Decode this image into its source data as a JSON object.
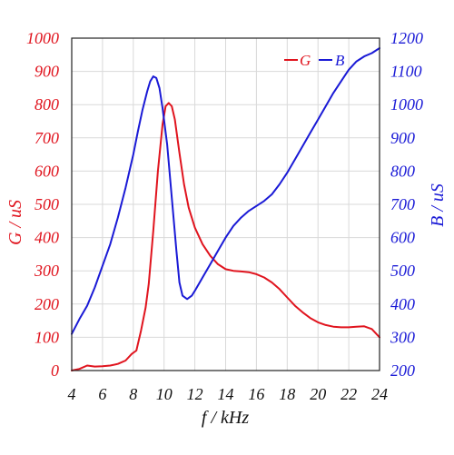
{
  "chart_data": {
    "type": "line",
    "xlabel": "f / kHz",
    "ylabel_left": "G / uS",
    "ylabel_right": "B / uS",
    "xlim": [
      4,
      24
    ],
    "ylim_left": [
      0,
      1000
    ],
    "ylim_right": [
      200,
      1200
    ],
    "x_ticks": [
      "4",
      "6",
      "8",
      "10",
      "12",
      "14",
      "16",
      "18",
      "20",
      "22",
      "24"
    ],
    "y_left_ticks": [
      "0",
      "100",
      "200",
      "300",
      "400",
      "500",
      "600",
      "700",
      "800",
      "900",
      "1000"
    ],
    "y_right_ticks": [
      "200",
      "300",
      "400",
      "500",
      "600",
      "700",
      "800",
      "900",
      "1000",
      "1100",
      "1200"
    ],
    "grid": true,
    "legend_position": "top-right",
    "series": [
      {
        "name": "G",
        "axis": "left",
        "color": "#e0141e",
        "x": [
          4.0,
          4.5,
          5.0,
          5.5,
          6.0,
          6.5,
          7.0,
          7.5,
          7.9,
          8.2,
          8.5,
          8.8,
          9.0,
          9.3,
          9.6,
          9.9,
          10.1,
          10.3,
          10.5,
          10.7,
          11.0,
          11.3,
          11.6,
          12.0,
          12.5,
          13.0,
          13.5,
          14.0,
          14.5,
          15.0,
          15.5,
          16.0,
          16.5,
          17.0,
          17.5,
          18.0,
          18.5,
          19.0,
          19.5,
          20.0,
          20.5,
          21.0,
          21.5,
          22.0,
          22.5,
          23.0,
          23.5,
          24.0
        ],
        "y": [
          0,
          5,
          15,
          12,
          13,
          15,
          20,
          30,
          50,
          60,
          120,
          190,
          260,
          420,
          600,
          740,
          795,
          805,
          795,
          755,
          655,
          560,
          490,
          430,
          380,
          345,
          320,
          305,
          300,
          298,
          296,
          290,
          280,
          265,
          245,
          220,
          195,
          175,
          158,
          145,
          137,
          132,
          130,
          130,
          132,
          133,
          125,
          100
        ]
      },
      {
        "name": "B",
        "axis": "right",
        "color": "#1a1ad6",
        "x": [
          4.0,
          4.5,
          5.0,
          5.5,
          6.0,
          6.5,
          7.0,
          7.5,
          8.0,
          8.3,
          8.6,
          8.9,
          9.1,
          9.3,
          9.5,
          9.7,
          9.9,
          10.2,
          10.5,
          10.8,
          11.0,
          11.2,
          11.5,
          11.8,
          12.0,
          12.5,
          13.0,
          13.5,
          14.0,
          14.5,
          15.0,
          15.5,
          16.0,
          16.5,
          17.0,
          17.5,
          18.0,
          18.5,
          19.0,
          19.5,
          20.0,
          20.5,
          21.0,
          21.5,
          22.0,
          22.5,
          23.0,
          23.5,
          24.0
        ],
        "y": [
          310,
          355,
          395,
          450,
          515,
          580,
          660,
          750,
          850,
          920,
          985,
          1040,
          1070,
          1085,
          1080,
          1050,
          990,
          880,
          720,
          560,
          465,
          425,
          415,
          425,
          440,
          480,
          520,
          560,
          600,
          635,
          660,
          680,
          695,
          710,
          730,
          760,
          795,
          835,
          875,
          915,
          955,
          995,
          1035,
          1070,
          1105,
          1130,
          1145,
          1155,
          1170
        ]
      }
    ]
  },
  "colors": {
    "g_series": "#e0141e",
    "b_series": "#1a1ad6",
    "grid": "#d9d9d9",
    "frame": "#222222"
  }
}
